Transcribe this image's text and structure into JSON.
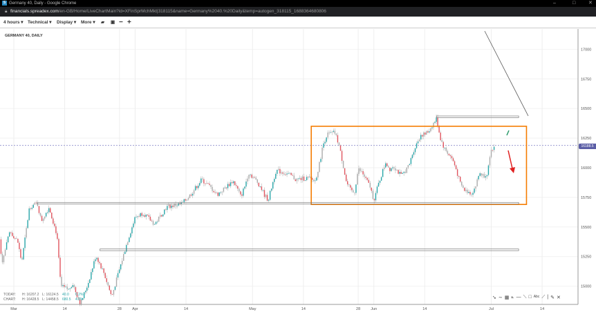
{
  "window": {
    "title": "Germany 40, Daily - Google Chrome",
    "favicon": "S"
  },
  "address": {
    "host": "financials.spreadex.com",
    "path": "/en-GB/Home/LiveChartMain?id=XFinSprMchMkt|318115&name=Germany%2040.%20Daily&temp=autogen_318115_1688364680806"
  },
  "toolbar": {
    "interval": "4 hours ▾",
    "technical": "Technical ▾",
    "display": "Display ▾",
    "more": "More ▾",
    "icons": [
      "folder-icon",
      "save-icon",
      "zoom-out-icon",
      "zoom-in-icon"
    ]
  },
  "chart_title": "GERMANY 40, DAILY",
  "stats": {
    "today": {
      "label": "TODAY:",
      "high": "H: 16207.2",
      "low": "L: 16124.5",
      "change": "40.0",
      "pct": "0.2%"
    },
    "chart": {
      "label": "CHART:",
      "high": "H: 16428.5",
      "low": "L: 14458.5",
      "change": "680.5",
      "pct": "4.3%"
    }
  },
  "colors": {
    "up": "#26a5a8",
    "down": "#e0545e",
    "neutral": "#aaaaaa",
    "box": "#f57c00",
    "price_tag": "#5b5ea6"
  },
  "chart_data": {
    "type": "candlestick",
    "interval": "4 hours",
    "y_ticks": [
      17000,
      16750,
      16500,
      16250,
      16000,
      15750,
      15500,
      15250,
      15000
    ],
    "ylim": [
      14830,
      17170
    ],
    "x_ticks": [
      {
        "date": "2023-03-01",
        "label": "Mar"
      },
      {
        "date": "2023-03-14",
        "label": "14"
      },
      {
        "date": "2023-03-28",
        "label": "28"
      },
      {
        "date": "2023-04-01",
        "label": "Apr"
      },
      {
        "date": "2023-04-14",
        "label": "14"
      },
      {
        "date": "2023-05-01",
        "label": "May"
      },
      {
        "date": "2023-05-14",
        "label": "14"
      },
      {
        "date": "2023-05-28",
        "label": "28"
      },
      {
        "date": "2023-06-01",
        "label": "Jun"
      },
      {
        "date": "2023-06-14",
        "label": "14"
      },
      {
        "date": "2023-07-01",
        "label": "Jul"
      },
      {
        "date": "2023-07-14",
        "label": "14"
      }
    ],
    "last_price": "16188.5",
    "approx_close_path": [
      [
        "2023-02-25",
        15522
      ],
      [
        "2023-02-26",
        15200
      ],
      [
        "2023-02-28",
        15464
      ],
      [
        "2023-03-02",
        15376
      ],
      [
        "2023-03-03",
        15200
      ],
      [
        "2023-03-05",
        15668
      ],
      [
        "2023-03-07",
        15700
      ],
      [
        "2023-03-08",
        15550
      ],
      [
        "2023-03-10",
        15668
      ],
      [
        "2023-03-12",
        15435
      ],
      [
        "2023-03-13",
        14998
      ],
      [
        "2023-03-15",
        14970
      ],
      [
        "2023-03-16",
        15027
      ],
      [
        "2023-03-18",
        14850
      ],
      [
        "2023-03-20",
        15027
      ],
      [
        "2023-03-22",
        15260
      ],
      [
        "2023-03-24",
        15114
      ],
      [
        "2023-03-26",
        14910
      ],
      [
        "2023-03-28",
        15143
      ],
      [
        "2023-03-30",
        15376
      ],
      [
        "2023-04-01",
        15580
      ],
      [
        "2023-04-03",
        15620
      ],
      [
        "2023-04-06",
        15522
      ],
      [
        "2023-04-08",
        15620
      ],
      [
        "2023-04-09",
        15668
      ],
      [
        "2023-04-13",
        15697
      ],
      [
        "2023-04-15",
        15767
      ],
      [
        "2023-04-18",
        15900
      ],
      [
        "2023-04-20",
        15843
      ],
      [
        "2023-04-22",
        15773
      ],
      [
        "2023-04-26",
        15889
      ],
      [
        "2023-04-27",
        15831
      ],
      [
        "2023-04-28",
        15755
      ],
      [
        "2023-04-29",
        15843
      ],
      [
        "2023-04-30",
        15959
      ],
      [
        "2023-05-02",
        15889
      ],
      [
        "2023-05-03",
        15843
      ],
      [
        "2023-05-04",
        15773
      ],
      [
        "2023-05-05",
        15726
      ],
      [
        "2023-05-06",
        15854
      ],
      [
        "2023-05-07",
        15977
      ],
      [
        "2023-05-09",
        15959
      ],
      [
        "2023-05-11",
        15930
      ],
      [
        "2023-05-12",
        15900
      ],
      [
        "2023-05-15",
        15913
      ],
      [
        "2023-05-17",
        15889
      ],
      [
        "2023-05-18",
        16017
      ],
      [
        "2023-05-19",
        16192
      ],
      [
        "2023-05-20",
        16280
      ],
      [
        "2023-05-22",
        16297
      ],
      [
        "2023-05-23",
        16204
      ],
      [
        "2023-05-24",
        16047
      ],
      [
        "2023-05-25",
        15872
      ],
      [
        "2023-05-26",
        15813
      ],
      [
        "2023-05-27",
        15784
      ],
      [
        "2023-05-28",
        15988
      ],
      [
        "2023-05-29",
        15959
      ],
      [
        "2023-05-31",
        15843
      ],
      [
        "2023-06-01",
        15726
      ],
      [
        "2023-06-02",
        15843
      ],
      [
        "2023-06-04",
        16047
      ],
      [
        "2023-06-05",
        15988
      ],
      [
        "2023-06-06",
        16017
      ],
      [
        "2023-06-08",
        15930
      ],
      [
        "2023-06-10",
        16017
      ],
      [
        "2023-06-11",
        16134
      ],
      [
        "2023-06-13",
        16280
      ],
      [
        "2023-06-14",
        16280
      ],
      [
        "2023-06-15",
        16309
      ],
      [
        "2023-06-17",
        16414
      ],
      [
        "2023-06-18",
        16250
      ],
      [
        "2023-06-19",
        16163
      ],
      [
        "2023-06-21",
        16076
      ],
      [
        "2023-06-22",
        15988
      ],
      [
        "2023-06-23",
        15872
      ],
      [
        "2023-06-24",
        15813
      ],
      [
        "2023-06-26",
        15784
      ],
      [
        "2023-06-27",
        15843
      ],
      [
        "2023-06-28",
        15959
      ],
      [
        "2023-06-29",
        15930
      ],
      [
        "2023-06-30",
        15959
      ],
      [
        "2023-07-01",
        16134
      ],
      [
        "2023-07-02",
        16188.5
      ]
    ],
    "annotations": {
      "range_box": {
        "from": "2023-05-16",
        "to": "2023-07-10",
        "high": 16350,
        "low": 15690
      },
      "levels": [
        {
          "price": 16430,
          "from": "2023-06-17",
          "to": "2023-07-08"
        },
        {
          "price": 15700,
          "from": "2023-03-07",
          "to": "2023-07-08"
        },
        {
          "price": 15307,
          "from": "2023-03-23",
          "to": "2023-07-08"
        }
      ]
    }
  }
}
